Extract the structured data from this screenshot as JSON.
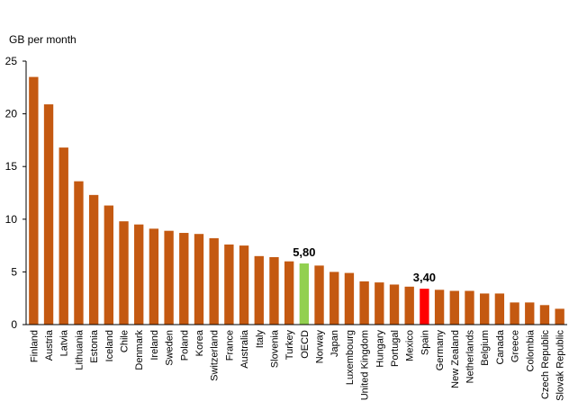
{
  "chart_data": {
    "type": "bar",
    "ylabel": "GB per month",
    "ylim": [
      0,
      25
    ],
    "yticks": [
      "0",
      "5",
      "10",
      "15",
      "20",
      "25"
    ],
    "grid": false,
    "colors": {
      "default": "#C45911",
      "OECD": "#92D050",
      "Spain": "#FF0000"
    },
    "categories": [
      "Finland",
      "Austria",
      "Latvia",
      "Lithuania",
      "Estonia",
      "Iceland",
      "Chile",
      "Denmark",
      "Ireland",
      "Sweden",
      "Poland",
      "Korea",
      "Switzerland",
      "France",
      "Australia",
      "Italy",
      "Slovenia",
      "Turkey",
      "OECD",
      "Norway",
      "Japan",
      "Luxembourg",
      "United Kingdom",
      "Hungary",
      "Portugal",
      "Mexico",
      "Spain",
      "Germany",
      "New Zealand",
      "Netherlands",
      "Belgium",
      "Canada",
      "Greece",
      "Colombia",
      "Czech Republic",
      "Slovak Republic"
    ],
    "values": [
      23.5,
      20.9,
      16.8,
      13.6,
      12.3,
      11.3,
      9.8,
      9.5,
      9.1,
      8.9,
      8.7,
      8.6,
      8.2,
      7.6,
      7.5,
      6.5,
      6.4,
      6.0,
      5.8,
      5.6,
      5.0,
      4.9,
      4.1,
      4.0,
      3.8,
      3.6,
      3.4,
      3.3,
      3.2,
      3.2,
      2.95,
      2.95,
      2.1,
      2.1,
      1.85,
      1.5
    ],
    "data_labels": [
      {
        "category": "OECD",
        "text": "5,80"
      },
      {
        "category": "Spain",
        "text": "3,40"
      }
    ]
  }
}
